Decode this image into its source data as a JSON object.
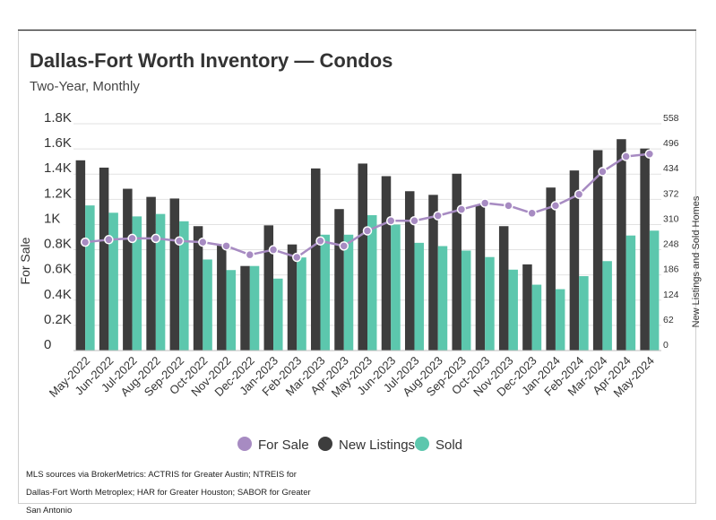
{
  "header": {
    "title": "Dallas-Fort Worth Inventory — Condos",
    "subtitle": "Two-Year, Monthly"
  },
  "source": "MLS sources via BrokerMetrics: ACTRIS for Greater Austin; NTREIS for Dallas-Fort Worth Metroplex; HAR for Greater Houston; SABOR for Greater San Antonio",
  "colors": {
    "for_sale": "#a78bc2",
    "new_listings": "#3d3d3d",
    "sold": "#5cc7ad",
    "grid": "#e2e2e2",
    "text": "#333333"
  },
  "chart_data": {
    "type": "bar",
    "categories": [
      "May-2022",
      "Jun-2022",
      "Jul-2022",
      "Aug-2022",
      "Sep-2022",
      "Oct-2022",
      "Nov-2022",
      "Dec-2022",
      "Jan-2023",
      "Feb-2023",
      "Mar-2023",
      "Apr-2023",
      "May-2023",
      "Jun-2023",
      "Jul-2023",
      "Aug-2023",
      "Sep-2023",
      "Oct-2023",
      "Nov-2023",
      "Dec-2023",
      "Jan-2024",
      "Feb-2024",
      "Mar-2024",
      "Apr-2024",
      "May-2024"
    ],
    "left_axis": {
      "label": "For Sale",
      "ticks": [
        "0",
        "0.2K",
        "0.4K",
        "0.6K",
        "0.8K",
        "1K",
        "1.2K",
        "1.4K",
        "1.6K",
        "1.8K"
      ],
      "ylim": [
        0,
        1800
      ]
    },
    "right_axis": {
      "label": "New Listings and Sold Homes",
      "ticks": [
        "0",
        "62",
        "124",
        "186",
        "248",
        "310",
        "372",
        "434",
        "496",
        "558"
      ],
      "ylim": [
        0,
        558
      ]
    },
    "series": [
      {
        "name": "New Listings",
        "kind": "bar",
        "axis": "right",
        "values": [
          468,
          450,
          398,
          378,
          374,
          306,
          258,
          208,
          308,
          261,
          448,
          348,
          460,
          429,
          392,
          383,
          435,
          359,
          306,
          212,
          401,
          443,
          493,
          520,
          497
        ]
      },
      {
        "name": "Sold",
        "kind": "bar",
        "axis": "right",
        "values": [
          357,
          339,
          330,
          336,
          318,
          224,
          198,
          208,
          177,
          229,
          285,
          285,
          333,
          310,
          265,
          257,
          246,
          230,
          199,
          162,
          151,
          183,
          220,
          283,
          295
        ]
      },
      {
        "name": "For Sale",
        "kind": "line",
        "axis": "left",
        "values": [
          860,
          880,
          890,
          890,
          870,
          860,
          830,
          760,
          800,
          740,
          870,
          830,
          950,
          1030,
          1030,
          1070,
          1120,
          1170,
          1150,
          1090,
          1150,
          1240,
          1420,
          1540,
          1560
        ]
      }
    ],
    "legend": {
      "position": "bottom",
      "items": [
        "For Sale",
        "New Listings",
        "Sold"
      ]
    },
    "grid": true
  }
}
